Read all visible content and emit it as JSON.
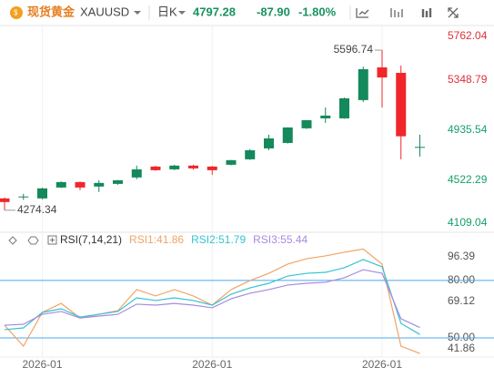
{
  "header": {
    "symbol_name": "现货黄金",
    "symbol": "XAUUSD",
    "period": "日K",
    "price": "4797.28",
    "change": "-87.90",
    "change_pct": "-1.80%"
  },
  "chart_data": [
    {
      "type": "candlestick",
      "categories": [
        null,
        null,
        "2026-01",
        null,
        null,
        null,
        null,
        null,
        null,
        null,
        null,
        "2026-01",
        null,
        null,
        null,
        null,
        null,
        null,
        null,
        null,
        "2026-01",
        null,
        null
      ],
      "open": [
        4372,
        4387,
        4372,
        4462,
        4507,
        4470,
        4492,
        4545,
        4635,
        4612,
        4643,
        4635,
        4650,
        4695,
        4785,
        4830,
        4951,
        5033,
        5033,
        5184,
        5454,
        5409,
        4795
      ],
      "high": [
        4380,
        4410,
        4460,
        4512,
        4512,
        4522,
        4525,
        4643,
        4643,
        4650,
        4650,
        4640,
        4690,
        4780,
        4898,
        4960,
        5020,
        5123,
        5205,
        5460,
        5596.74,
        5469,
        4898
      ],
      "low": [
        4274.34,
        4360,
        4365,
        4458,
        4440,
        4425,
        4485,
        4530,
        4600,
        4605,
        4610,
        4568,
        4645,
        4690,
        4770,
        4825,
        4945,
        4996,
        5030,
        5168,
        5123,
        4695,
        4718
      ],
      "close": [
        4342,
        4388,
        4455,
        4507,
        4462,
        4500,
        4522,
        4612,
        4605,
        4643,
        4620,
        4605,
        4688,
        4770,
        4868,
        4958,
        5018,
        5056,
        5199,
        5439,
        5371,
        4885.18,
        4797.28
      ],
      "up_color": "#14895b",
      "down_color": "#f0262a",
      "ylim": [
        4100,
        5800
      ],
      "yticks": [
        {
          "value": 5762.04,
          "color": "#e0303a"
        },
        {
          "value": 5348.79,
          "color": "#e0303a"
        },
        {
          "value": 4935.54,
          "color": "#16a06a"
        },
        {
          "value": 4522.29,
          "color": "#16a06a"
        },
        {
          "value": 4109.04,
          "color": "#16a06a"
        }
      ]
    },
    {
      "type": "line",
      "title": "RSI(7,14,21)",
      "series": [
        {
          "name": "RSI1:41.86",
          "color": "#f2a465",
          "values": [
            56.6,
            45.7,
            63.3,
            68,
            60.4,
            62.3,
            64.2,
            75.2,
            71.9,
            75.2,
            71.9,
            67.1,
            75.2,
            79.9,
            83.7,
            88.5,
            91.3,
            92.8,
            94.7,
            96.39,
            88.5,
            45.7,
            41.86
          ]
        },
        {
          "name": "RSI2:51.79",
          "color": "#36c3cf",
          "values": [
            54.3,
            55.2,
            63.3,
            65.2,
            60.9,
            62.3,
            63.8,
            70.9,
            69.5,
            70.9,
            69.5,
            67.1,
            72.8,
            76.1,
            78.5,
            82.3,
            83.7,
            84.2,
            86.6,
            90.9,
            87.1,
            57.6,
            51.79
          ]
        },
        {
          "name": "RSI3:55.44",
          "color": "#a88be0",
          "values": [
            56.6,
            57.1,
            62.3,
            63.8,
            60.4,
            61.4,
            62.3,
            67.6,
            67.1,
            68,
            67.1,
            65.7,
            70.4,
            73.3,
            75.2,
            77.6,
            78.5,
            79,
            81.4,
            85.6,
            83.7,
            60,
            55.44
          ]
        }
      ],
      "ylim": [
        40,
        98
      ],
      "yticks": [
        96.39,
        {
          "value": 80,
          "label": "80.00",
          "line": true
        },
        69.12,
        {
          "value": 50,
          "label": "50.00",
          "line": true
        },
        41.86
      ],
      "level_color": "#4aa8ef"
    }
  ]
}
